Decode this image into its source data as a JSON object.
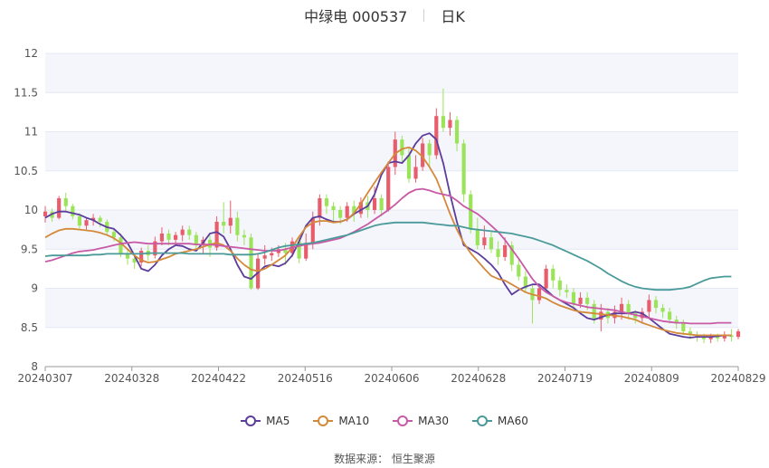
{
  "header": {
    "name_code": "中绿电 000537",
    "period": "日K"
  },
  "source": {
    "label": "数据来源：",
    "value": "恒生聚源"
  },
  "colors": {
    "up": "#e85d6b",
    "down": "#9be45a",
    "MA5": "#5c3d9c",
    "MA10": "#d4893a",
    "MA30": "#c85aa6",
    "MA60": "#4a9a9a",
    "grid": "#e3e8f5",
    "band": "#f4f6fb"
  },
  "chart_data": {
    "type": "candlestick",
    "ylim": [
      8,
      12
    ],
    "yticks": [
      "8",
      "8.5",
      "9",
      "9.5",
      "10",
      "10.5",
      "11",
      "11.5",
      "12"
    ],
    "x_labels": [
      "20240307",
      "20240328",
      "20240422",
      "20240516",
      "20240606",
      "20240628",
      "20240719",
      "20240809",
      "20240829"
    ],
    "legend": [
      "MA5",
      "MA10",
      "MA30",
      "MA60"
    ],
    "candles": [
      [
        9.92,
        9.98,
        9.84,
        10.05
      ],
      [
        9.98,
        9.9,
        9.85,
        10.02
      ],
      [
        9.9,
        10.15,
        9.88,
        10.18
      ],
      [
        10.15,
        10.05,
        9.98,
        10.22
      ],
      [
        10.05,
        9.92,
        9.88,
        10.08
      ],
      [
        9.92,
        9.8,
        9.76,
        9.96
      ],
      [
        9.8,
        9.87,
        9.75,
        9.9
      ],
      [
        9.87,
        9.9,
        9.8,
        9.95
      ],
      [
        9.9,
        9.85,
        9.78,
        9.93
      ],
      [
        9.85,
        9.72,
        9.68,
        9.88
      ],
      [
        9.72,
        9.65,
        9.6,
        9.76
      ],
      [
        9.65,
        9.45,
        9.4,
        9.7
      ],
      [
        9.45,
        9.38,
        9.3,
        9.5
      ],
      [
        9.38,
        9.33,
        9.25,
        9.43
      ],
      [
        9.33,
        9.48,
        9.28,
        9.52
      ],
      [
        9.48,
        9.42,
        9.35,
        9.55
      ],
      [
        9.42,
        9.6,
        9.38,
        9.66
      ],
      [
        9.6,
        9.7,
        9.55,
        9.78
      ],
      [
        9.7,
        9.62,
        9.55,
        9.75
      ],
      [
        9.62,
        9.68,
        9.56,
        9.72
      ],
      [
        9.68,
        9.75,
        9.6,
        9.8
      ],
      [
        9.75,
        9.68,
        9.62,
        9.8
      ],
      [
        9.68,
        9.55,
        9.5,
        9.72
      ],
      [
        9.55,
        9.62,
        9.45,
        9.66
      ],
      [
        9.62,
        9.52,
        9.4,
        9.68
      ],
      [
        9.52,
        9.85,
        9.48,
        9.92
      ],
      [
        9.85,
        9.8,
        9.7,
        10.1
      ],
      [
        9.8,
        9.9,
        9.7,
        10.12
      ],
      [
        9.9,
        9.68,
        9.6,
        9.98
      ],
      [
        9.68,
        9.65,
        9.55,
        9.75
      ],
      [
        9.65,
        9.0,
        8.98,
        9.7
      ],
      [
        9.0,
        9.38,
        8.98,
        9.45
      ],
      [
        9.38,
        9.42,
        9.3,
        9.55
      ],
      [
        9.42,
        9.45,
        9.35,
        9.52
      ],
      [
        9.45,
        9.5,
        9.4,
        9.55
      ],
      [
        9.5,
        9.45,
        9.3,
        9.58
      ],
      [
        9.45,
        9.6,
        9.4,
        9.65
      ],
      [
        9.6,
        9.38,
        9.32,
        9.65
      ],
      [
        9.38,
        9.58,
        9.35,
        9.7
      ],
      [
        9.58,
        9.9,
        9.5,
        9.98
      ],
      [
        9.9,
        10.15,
        9.8,
        10.2
      ],
      [
        10.15,
        10.05,
        9.95,
        10.2
      ],
      [
        10.05,
        10.0,
        9.85,
        10.1
      ],
      [
        10.0,
        9.9,
        9.82,
        10.05
      ],
      [
        9.9,
        10.05,
        9.85,
        10.1
      ],
      [
        10.05,
        9.95,
        9.85,
        10.12
      ],
      [
        9.95,
        10.1,
        9.9,
        10.16
      ],
      [
        10.1,
        10.0,
        9.9,
        10.18
      ],
      [
        10.0,
        10.15,
        9.95,
        10.3
      ],
      [
        10.15,
        10.0,
        9.92,
        10.2
      ],
      [
        10.0,
        10.55,
        9.98,
        10.62
      ],
      [
        10.55,
        10.9,
        10.45,
        11.0
      ],
      [
        10.9,
        10.7,
        10.6,
        10.95
      ],
      [
        10.7,
        10.4,
        10.35,
        10.8
      ],
      [
        10.4,
        10.55,
        10.35,
        10.7
      ],
      [
        10.55,
        10.85,
        10.5,
        10.92
      ],
      [
        10.85,
        10.7,
        10.55,
        10.9
      ],
      [
        10.7,
        11.2,
        10.65,
        11.3
      ],
      [
        11.2,
        11.05,
        11.0,
        11.55
      ],
      [
        11.05,
        11.15,
        10.95,
        11.25
      ],
      [
        11.15,
        10.85,
        10.75,
        11.2
      ],
      [
        10.85,
        10.2,
        10.1,
        10.9
      ],
      [
        10.2,
        9.75,
        9.7,
        10.25
      ],
      [
        9.75,
        9.55,
        9.5,
        9.9
      ],
      [
        9.55,
        9.65,
        9.5,
        9.8
      ],
      [
        9.65,
        9.5,
        9.45,
        9.72
      ],
      [
        9.5,
        9.4,
        9.3,
        9.6
      ],
      [
        9.4,
        9.55,
        9.35,
        9.65
      ],
      [
        9.55,
        9.3,
        9.22,
        9.6
      ],
      [
        9.3,
        9.15,
        9.1,
        9.38
      ],
      [
        9.15,
        9.0,
        8.95,
        9.22
      ],
      [
        9.0,
        8.85,
        8.55,
        9.05
      ],
      [
        8.85,
        9.0,
        8.8,
        9.05
      ],
      [
        9.0,
        9.25,
        8.95,
        9.3
      ],
      [
        9.25,
        9.1,
        9.0,
        9.3
      ],
      [
        9.1,
        8.98,
        8.9,
        9.15
      ],
      [
        8.98,
        8.95,
        8.88,
        9.05
      ],
      [
        8.95,
        8.8,
        8.75,
        9.0
      ],
      [
        8.8,
        8.88,
        8.75,
        8.95
      ],
      [
        8.88,
        8.8,
        8.72,
        8.95
      ],
      [
        8.8,
        8.6,
        8.55,
        8.85
      ],
      [
        8.6,
        8.7,
        8.45,
        8.8
      ],
      [
        8.7,
        8.62,
        8.55,
        8.75
      ],
      [
        8.62,
        8.7,
        8.55,
        8.78
      ],
      [
        8.7,
        8.8,
        8.6,
        8.88
      ],
      [
        8.8,
        8.68,
        8.6,
        8.85
      ],
      [
        8.68,
        8.62,
        8.55,
        8.72
      ],
      [
        8.62,
        8.7,
        8.55,
        8.75
      ],
      [
        8.7,
        8.85,
        8.62,
        8.92
      ],
      [
        8.85,
        8.75,
        8.68,
        8.9
      ],
      [
        8.75,
        8.7,
        8.62,
        8.8
      ],
      [
        8.7,
        8.6,
        8.55,
        8.75
      ],
      [
        8.6,
        8.55,
        8.48,
        8.65
      ],
      [
        8.55,
        8.45,
        8.4,
        8.6
      ],
      [
        8.45,
        8.4,
        8.35,
        8.5
      ],
      [
        8.4,
        8.38,
        8.32,
        8.45
      ],
      [
        8.38,
        8.35,
        8.3,
        8.42
      ],
      [
        8.35,
        8.38,
        8.3,
        8.42
      ],
      [
        8.38,
        8.36,
        8.32,
        8.42
      ],
      [
        8.36,
        8.4,
        8.32,
        8.45
      ],
      [
        8.4,
        8.38,
        8.32,
        8.48
      ],
      [
        8.38,
        8.45,
        8.35,
        8.48
      ]
    ],
    "series": [
      {
        "name": "MA5",
        "values": [
          9.9,
          9.95,
          9.98,
          9.98,
          9.96,
          9.94,
          9.9,
          9.87,
          9.82,
          9.78,
          9.76,
          9.68,
          9.58,
          9.42,
          9.25,
          9.22,
          9.3,
          9.42,
          9.5,
          9.55,
          9.54,
          9.5,
          9.48,
          9.58,
          9.7,
          9.72,
          9.66,
          9.5,
          9.3,
          9.15,
          9.12,
          9.2,
          9.28,
          9.3,
          9.28,
          9.32,
          9.42,
          9.6,
          9.8,
          9.9,
          9.92,
          9.88,
          9.85,
          9.85,
          9.88,
          9.95,
          10.0,
          10.05,
          10.2,
          10.45,
          10.6,
          10.62,
          10.6,
          10.7,
          10.85,
          10.95,
          10.98,
          10.9,
          10.6,
          10.2,
          9.85,
          9.55,
          9.5,
          9.45,
          9.38,
          9.3,
          9.2,
          9.05,
          8.92,
          8.98,
          9.02,
          9.05,
          9.05,
          8.98,
          8.9,
          8.85,
          8.8,
          8.75,
          8.68,
          8.62,
          8.6,
          8.63,
          8.66,
          8.68,
          8.68,
          8.68,
          8.7,
          8.68,
          8.62,
          8.55,
          8.48,
          8.42,
          8.4,
          8.38,
          8.37,
          8.38,
          8.38,
          8.38,
          8.39,
          8.4,
          8.4
        ]
      },
      {
        "name": "MA10",
        "values": [
          9.65,
          9.7,
          9.74,
          9.76,
          9.76,
          9.75,
          9.74,
          9.73,
          9.71,
          9.68,
          9.64,
          9.58,
          9.5,
          9.42,
          9.36,
          9.33,
          9.34,
          9.37,
          9.4,
          9.44,
          9.46,
          9.48,
          9.5,
          9.53,
          9.56,
          9.58,
          9.55,
          9.48,
          9.38,
          9.3,
          9.24,
          9.22,
          9.25,
          9.3,
          9.36,
          9.42,
          9.52,
          9.66,
          9.78,
          9.84,
          9.86,
          9.86,
          9.84,
          9.85,
          9.88,
          9.96,
          10.08,
          10.22,
          10.35,
          10.48,
          10.6,
          10.72,
          10.78,
          10.8,
          10.76,
          10.68,
          10.55,
          10.4,
          10.18,
          9.95,
          9.75,
          9.58,
          9.45,
          9.35,
          9.25,
          9.16,
          9.12,
          9.1,
          9.05,
          9.0,
          8.95,
          8.92,
          8.9,
          8.87,
          8.82,
          8.78,
          8.75,
          8.72,
          8.7,
          8.69,
          8.68,
          8.67,
          8.66,
          8.65,
          8.64,
          8.62,
          8.6,
          8.56,
          8.53,
          8.5,
          8.47,
          8.45,
          8.43,
          8.42,
          8.41,
          8.4,
          8.4,
          8.4,
          8.4,
          8.4,
          8.4
        ]
      },
      {
        "name": "MA30",
        "values": [
          9.34,
          9.36,
          9.39,
          9.42,
          9.45,
          9.47,
          9.48,
          9.49,
          9.51,
          9.53,
          9.55,
          9.57,
          9.58,
          9.59,
          9.58,
          9.57,
          9.57,
          9.57,
          9.57,
          9.57,
          9.57,
          9.57,
          9.56,
          9.56,
          9.56,
          9.55,
          9.54,
          9.53,
          9.52,
          9.51,
          9.5,
          9.49,
          9.48,
          9.48,
          9.48,
          9.5,
          9.52,
          9.54,
          9.56,
          9.57,
          9.58,
          9.6,
          9.62,
          9.64,
          9.68,
          9.72,
          9.77,
          9.82,
          9.88,
          9.94,
          10.0,
          10.07,
          10.15,
          10.22,
          10.26,
          10.27,
          10.25,
          10.22,
          10.2,
          10.18,
          10.12,
          10.05,
          10.0,
          9.95,
          9.88,
          9.8,
          9.72,
          9.62,
          9.5,
          9.38,
          9.25,
          9.12,
          9.02,
          8.95,
          8.9,
          8.85,
          8.82,
          8.8,
          8.78,
          8.76,
          8.75,
          8.74,
          8.73,
          8.72,
          8.7,
          8.68,
          8.66,
          8.64,
          8.62,
          8.6,
          8.58,
          8.57,
          8.56,
          8.56,
          8.55,
          8.55,
          8.55,
          8.55,
          8.56,
          8.56,
          8.56
        ]
      },
      {
        "name": "MA60",
        "values": [
          9.41,
          9.42,
          9.42,
          9.42,
          9.42,
          9.42,
          9.42,
          9.43,
          9.43,
          9.44,
          9.44,
          9.44,
          9.44,
          9.44,
          9.44,
          9.45,
          9.45,
          9.45,
          9.45,
          9.45,
          9.45,
          9.44,
          9.44,
          9.44,
          9.44,
          9.44,
          9.44,
          9.43,
          9.43,
          9.43,
          9.43,
          9.44,
          9.46,
          9.49,
          9.52,
          9.54,
          9.55,
          9.56,
          9.57,
          9.58,
          9.6,
          9.62,
          9.64,
          9.66,
          9.68,
          9.71,
          9.74,
          9.77,
          9.8,
          9.82,
          9.83,
          9.84,
          9.84,
          9.84,
          9.84,
          9.84,
          9.83,
          9.82,
          9.81,
          9.8,
          9.8,
          9.78,
          9.76,
          9.75,
          9.74,
          9.73,
          9.72,
          9.71,
          9.7,
          9.68,
          9.66,
          9.64,
          9.61,
          9.58,
          9.55,
          9.51,
          9.47,
          9.43,
          9.39,
          9.35,
          9.3,
          9.25,
          9.19,
          9.14,
          9.09,
          9.05,
          9.02,
          9.0,
          8.99,
          8.98,
          8.98,
          8.98,
          8.99,
          9.0,
          9.02,
          9.06,
          9.1,
          9.13,
          9.14,
          9.15,
          9.15
        ]
      }
    ]
  }
}
